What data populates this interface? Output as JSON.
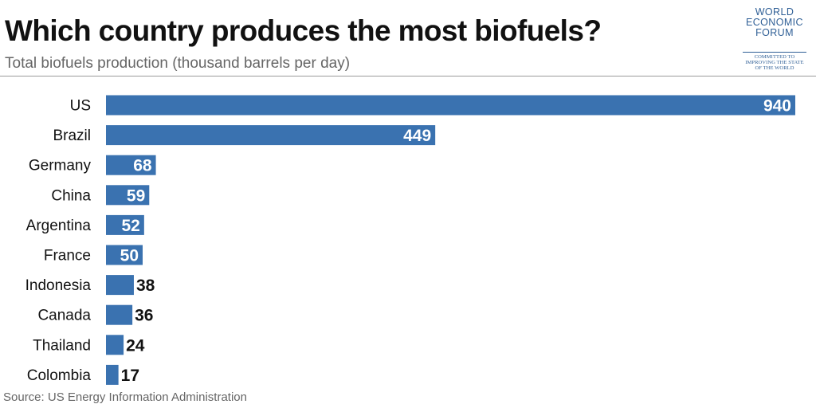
{
  "header": {
    "title": "Which country produces the most biofuels?",
    "subtitle": "Total biofuels production (thousand barrels per day)"
  },
  "logo": {
    "line1": "WORLD",
    "line2": "ECONOMIC",
    "line3": "FORUM",
    "tag1": "COMMITTED TO",
    "tag2": "IMPROVING THE STATE",
    "tag3": "OF THE WORLD"
  },
  "source": "Source: US Energy Information Administration",
  "colors": {
    "bar": "#3a72b0",
    "label_inside": "#ffffff",
    "label_outside": "#111111",
    "category_text": "#111111",
    "logo": "#2f5f96"
  },
  "chart_data": {
    "type": "bar",
    "orientation": "horizontal",
    "categories": [
      "US",
      "Brazil",
      "Germany",
      "China",
      "Argentina",
      "France",
      "Indonesia",
      "Canada",
      "Thailand",
      "Colombia"
    ],
    "values": [
      940,
      449,
      68,
      59,
      52,
      50,
      38,
      36,
      24,
      17
    ],
    "title": "Which country produces the most biofuels?",
    "subtitle": "Total biofuels production (thousand barrels per day)",
    "xlabel": "",
    "ylabel": "",
    "xlim": [
      0,
      940
    ],
    "grid": false,
    "legend": "none"
  }
}
